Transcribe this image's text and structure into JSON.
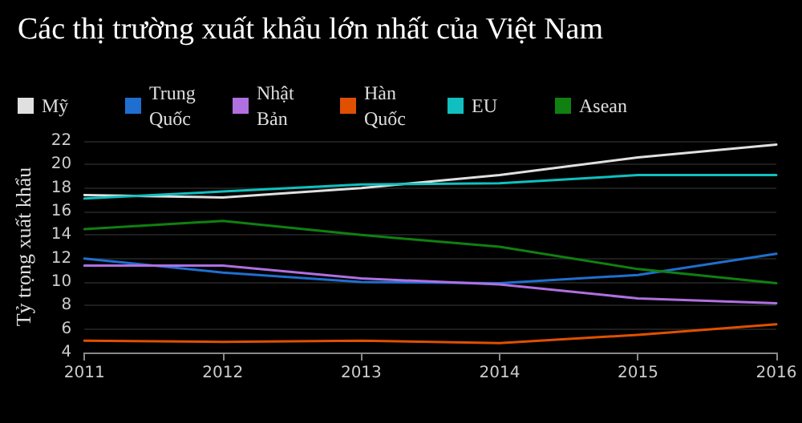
{
  "chart_data": {
    "type": "line",
    "title": "Các thị trường xuất khẩu lớn nhất của Việt Nam",
    "ylabel": "Tỷ trọng xuất khẩu",
    "x": [
      2011,
      2012,
      2013,
      2014,
      2015,
      2016
    ],
    "xlim": [
      2011,
      2016
    ],
    "xticks": [
      2011,
      2012,
      2013,
      2014,
      2015,
      2016
    ],
    "ylim": [
      4,
      22
    ],
    "yticks": [
      4,
      6,
      8,
      10,
      12,
      14,
      16,
      18,
      20,
      22
    ],
    "grid": "y",
    "legend": "top left",
    "marker": "none",
    "line_style": "solid",
    "series": [
      {
        "name": "Mỹ",
        "color": "#e0e0e0",
        "values": [
          17.4,
          17.2,
          18.0,
          19.1,
          20.6,
          21.7
        ]
      },
      {
        "name": "Trung Quốc",
        "color": "#1f6fd0",
        "values": [
          12.0,
          10.8,
          10.0,
          9.9,
          10.6,
          12.4
        ]
      },
      {
        "name": "Nhật Bản",
        "color": "#b070e0",
        "values": [
          11.4,
          11.4,
          10.3,
          9.8,
          8.6,
          8.2
        ]
      },
      {
        "name": "Hàn Quốc",
        "color": "#e05000",
        "values": [
          5.0,
          4.9,
          5.0,
          4.8,
          5.5,
          6.4
        ]
      },
      {
        "name": "EU",
        "color": "#10c0c0",
        "values": [
          17.1,
          17.7,
          18.3,
          18.4,
          19.1,
          19.1
        ]
      },
      {
        "name": "Asean",
        "color": "#108010",
        "values": [
          14.5,
          15.2,
          14.0,
          13.0,
          11.1,
          9.9
        ]
      }
    ]
  }
}
